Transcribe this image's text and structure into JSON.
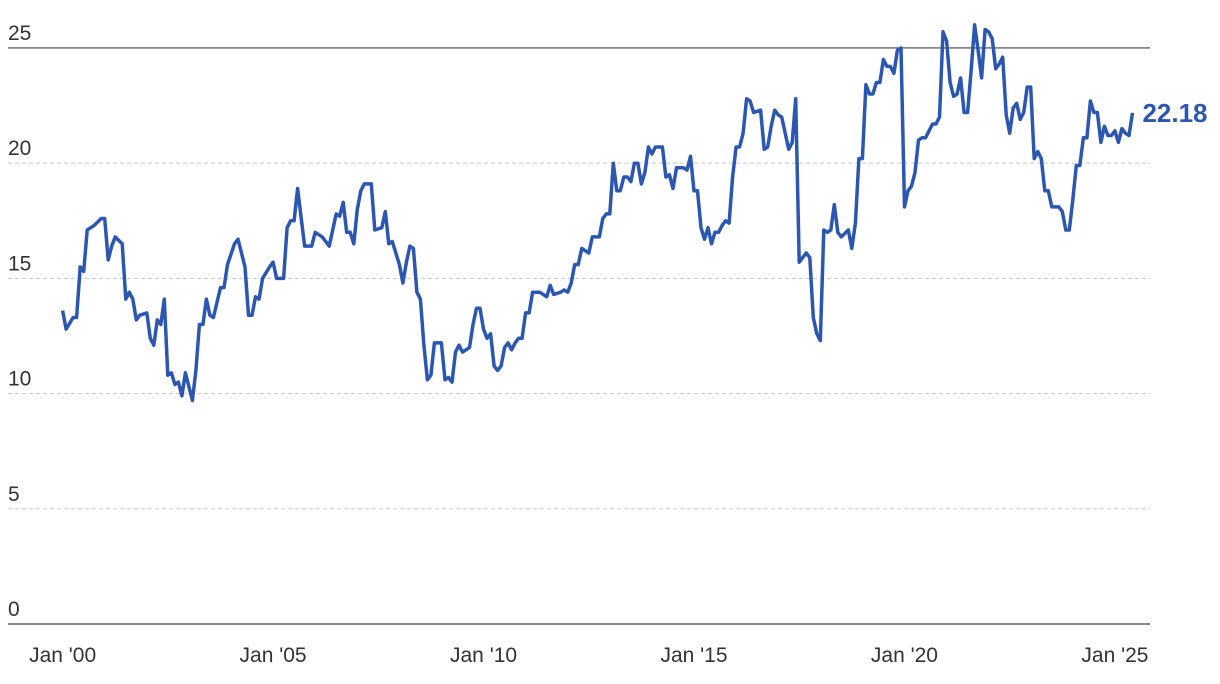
{
  "chart_data": {
    "type": "line",
    "x": [
      "2000-01",
      "2000-02",
      "2000-04",
      "2000-05",
      "2000-06",
      "2000-07",
      "2000-08",
      "2000-10",
      "2000-12",
      "2001-01",
      "2001-02",
      "2001-03",
      "2001-04",
      "2001-06",
      "2001-07",
      "2001-08",
      "2001-09",
      "2001-10",
      "2001-11",
      "2002-01",
      "2002-02",
      "2002-03",
      "2002-04",
      "2002-05",
      "2002-06",
      "2002-07",
      "2002-08",
      "2002-09",
      "2002-10",
      "2002-11",
      "2002-12",
      "2003-02",
      "2003-03",
      "2003-04",
      "2003-05",
      "2003-06",
      "2003-07",
      "2003-08",
      "2003-10",
      "2003-11",
      "2003-12",
      "2004-02",
      "2004-03",
      "2004-05",
      "2004-06",
      "2004-07",
      "2004-08",
      "2004-09",
      "2004-10",
      "2004-12",
      "2005-01",
      "2005-02",
      "2005-04",
      "2005-05",
      "2005-06",
      "2005-07",
      "2005-08",
      "2005-10",
      "2005-12",
      "2006-01",
      "2006-03",
      "2006-05",
      "2006-07",
      "2006-08",
      "2006-09",
      "2006-10",
      "2006-11",
      "2006-12",
      "2007-01",
      "2007-02",
      "2007-03",
      "2007-05",
      "2007-06",
      "2007-08",
      "2007-09",
      "2007-10",
      "2007-11",
      "2008-01",
      "2008-02",
      "2008-03",
      "2008-04",
      "2008-05",
      "2008-06",
      "2008-07",
      "2008-08",
      "2008-09",
      "2008-10",
      "2008-11",
      "2009-01",
      "2009-02",
      "2009-03",
      "2009-04",
      "2009-05",
      "2009-06",
      "2009-07",
      "2009-09",
      "2009-10",
      "2009-11",
      "2009-12",
      "2010-01",
      "2010-02",
      "2010-03",
      "2010-04",
      "2010-05",
      "2010-06",
      "2010-07",
      "2010-08",
      "2010-09",
      "2010-10",
      "2010-11",
      "2010-12",
      "2011-01",
      "2011-02",
      "2011-03",
      "2011-05",
      "2011-07",
      "2011-08",
      "2011-09",
      "2011-11",
      "2011-12",
      "2012-01",
      "2012-02",
      "2012-03",
      "2012-04",
      "2012-05",
      "2012-07",
      "2012-08",
      "2012-10",
      "2012-11",
      "2012-12",
      "2013-01",
      "2013-02",
      "2013-03",
      "2013-04",
      "2013-05",
      "2013-06",
      "2013-07",
      "2013-08",
      "2013-09",
      "2013-10",
      "2013-11",
      "2013-12",
      "2014-01",
      "2014-02",
      "2014-04",
      "2014-05",
      "2014-06",
      "2014-07",
      "2014-08",
      "2014-10",
      "2014-11",
      "2014-12",
      "2015-01",
      "2015-02",
      "2015-03",
      "2015-04",
      "2015-05",
      "2015-06",
      "2015-07",
      "2015-08",
      "2015-09",
      "2015-10",
      "2015-11",
      "2015-12",
      "2016-01",
      "2016-02",
      "2016-03",
      "2016-04",
      "2016-05",
      "2016-06",
      "2016-08",
      "2016-09",
      "2016-10",
      "2016-11",
      "2016-12",
      "2017-01",
      "2017-02",
      "2017-03",
      "2017-04",
      "2017-05",
      "2017-06",
      "2017-07",
      "2017-08",
      "2017-09",
      "2017-10",
      "2017-11",
      "2017-12",
      "2018-01",
      "2018-02",
      "2018-03",
      "2018-04",
      "2018-05",
      "2018-06",
      "2018-07",
      "2018-09",
      "2018-10",
      "2018-11",
      "2018-12",
      "2019-01",
      "2019-02",
      "2019-03",
      "2019-04",
      "2019-05",
      "2019-06",
      "2019-07",
      "2019-08",
      "2019-09",
      "2019-10",
      "2019-11",
      "2019-12",
      "2020-01",
      "2020-02",
      "2020-03",
      "2020-04",
      "2020-05",
      "2020-06",
      "2020-07",
      "2020-08",
      "2020-09",
      "2020-10",
      "2020-11",
      "2020-12",
      "2021-01",
      "2021-02",
      "2021-03",
      "2021-04",
      "2021-05",
      "2021-06",
      "2021-07",
      "2021-08",
      "2021-09",
      "2021-10",
      "2021-11",
      "2021-12",
      "2022-01",
      "2022-02",
      "2022-03",
      "2022-04",
      "2022-05",
      "2022-06",
      "2022-07",
      "2022-08",
      "2022-09",
      "2022-10",
      "2022-11",
      "2022-12",
      "2023-01",
      "2023-02",
      "2023-03",
      "2023-04",
      "2023-05",
      "2023-06",
      "2023-07",
      "2023-08",
      "2023-09",
      "2023-10",
      "2023-11",
      "2023-12",
      "2024-01",
      "2024-02",
      "2024-03",
      "2024-04",
      "2024-05",
      "2024-06",
      "2024-07",
      "2024-08",
      "2024-09",
      "2024-10",
      "2024-11",
      "2024-12",
      "2025-01",
      "2025-02",
      "2025-03",
      "2025-04",
      "2025-05",
      "2025-06"
    ],
    "series": [
      {
        "color": "#2b57b1",
        "values": [
          13.6,
          12.8,
          13.3,
          13.3,
          15.5,
          15.3,
          17.1,
          17.3,
          17.6,
          17.6,
          15.8,
          16.4,
          16.8,
          16.5,
          14.1,
          14.4,
          14.1,
          13.2,
          13.4,
          13.5,
          12.4,
          12.1,
          13.2,
          13.0,
          14.1,
          10.8,
          10.9,
          10.4,
          10.5,
          9.9,
          10.9,
          9.7,
          11.0,
          13.0,
          13.0,
          14.1,
          13.4,
          13.3,
          14.6,
          14.6,
          15.6,
          16.5,
          16.7,
          15.5,
          13.4,
          13.4,
          14.2,
          14.1,
          15.0,
          15.5,
          15.7,
          15.0,
          15.0,
          17.2,
          17.5,
          17.5,
          18.9,
          16.4,
          16.4,
          17.0,
          16.8,
          16.4,
          17.8,
          17.7,
          18.3,
          17.0,
          17.0,
          16.5,
          18.0,
          18.8,
          19.1,
          19.1,
          17.1,
          17.2,
          17.9,
          16.5,
          16.6,
          15.6,
          14.8,
          15.7,
          16.4,
          16.3,
          14.4,
          14.1,
          12.1,
          10.6,
          10.8,
          12.2,
          12.2,
          10.6,
          10.7,
          10.5,
          11.8,
          12.1,
          11.8,
          12.0,
          13.0,
          13.7,
          13.7,
          12.8,
          12.4,
          12.6,
          11.2,
          11.0,
          11.2,
          12.0,
          12.2,
          11.9,
          12.2,
          12.4,
          12.4,
          13.5,
          13.5,
          14.4,
          14.4,
          14.2,
          14.7,
          14.3,
          14.4,
          14.5,
          14.4,
          14.8,
          15.6,
          15.6,
          16.3,
          16.1,
          16.8,
          16.8,
          17.6,
          17.8,
          17.8,
          20.0,
          18.8,
          18.8,
          19.4,
          19.4,
          19.2,
          20.0,
          20.0,
          19.1,
          19.6,
          20.7,
          20.4,
          20.7,
          20.7,
          19.4,
          19.5,
          18.9,
          19.8,
          19.8,
          19.7,
          20.3,
          18.8,
          18.8,
          17.2,
          16.7,
          17.2,
          16.5,
          17.0,
          17.0,
          17.3,
          17.5,
          17.4,
          19.4,
          20.7,
          20.7,
          21.3,
          22.8,
          22.7,
          22.2,
          22.3,
          20.6,
          20.7,
          21.6,
          22.3,
          22.1,
          22.0,
          21.3,
          20.6,
          20.9,
          22.8,
          15.7,
          15.9,
          16.1,
          15.9,
          13.3,
          12.6,
          12.3,
          17.1,
          17.0,
          17.1,
          18.2,
          17.0,
          16.8,
          17.1,
          16.3,
          17.4,
          20.2,
          20.2,
          23.4,
          23.0,
          23.0,
          23.5,
          23.5,
          24.5,
          24.2,
          24.2,
          23.9,
          24.9,
          25.0,
          18.1,
          18.8,
          19.0,
          19.6,
          21.0,
          21.1,
          21.1,
          21.4,
          21.7,
          21.7,
          22.0,
          25.7,
          25.3,
          23.5,
          22.9,
          23.0,
          23.7,
          22.2,
          22.2,
          24.0,
          26.0,
          24.9,
          23.7,
          25.8,
          25.7,
          25.4,
          24.1,
          24.3,
          24.6,
          22.1,
          21.3,
          22.4,
          22.6,
          21.9,
          22.2,
          23.3,
          23.3,
          20.2,
          20.5,
          20.2,
          18.8,
          18.8,
          18.1,
          18.1,
          18.1,
          17.9,
          17.1,
          17.1,
          18.4,
          19.9,
          19.9,
          21.1,
          21.1,
          22.7,
          22.2,
          22.2,
          20.9,
          21.6,
          21.2,
          21.2,
          21.4,
          20.9,
          21.5,
          21.3,
          21.2,
          22.18
        ]
      }
    ],
    "xlim": [
      "1998-10",
      "2025-11"
    ],
    "xticks": [
      {
        "value": "2000-01",
        "label": "Jan '00"
      },
      {
        "value": "2005-01",
        "label": "Jan '05"
      },
      {
        "value": "2010-01",
        "label": "Jan '10"
      },
      {
        "value": "2015-01",
        "label": "Jan '15"
      },
      {
        "value": "2020-01",
        "label": "Jan '20"
      },
      {
        "value": "2025-01",
        "label": "Jan '25"
      }
    ],
    "ylim": [
      0,
      26.5
    ],
    "yticks": [
      0,
      5,
      10,
      15,
      20,
      25
    ],
    "grid": true
  }
}
